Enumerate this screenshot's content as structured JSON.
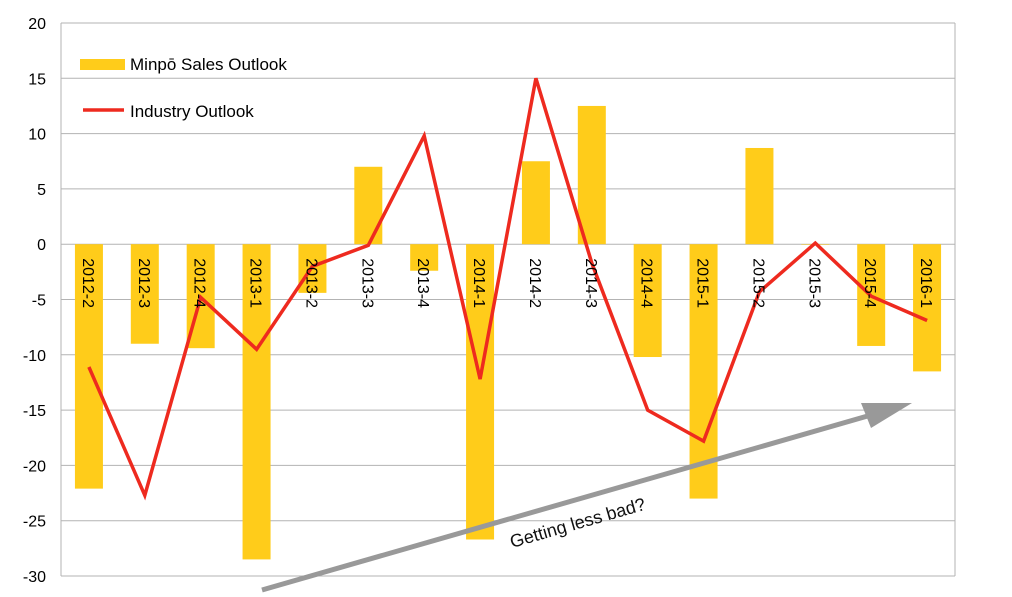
{
  "chart_data": {
    "type": "bar",
    "categories": [
      "2012-2",
      "2012-3",
      "2012-4",
      "2013-1",
      "2013-2",
      "2013-3",
      "2013-4",
      "2014-1",
      "2014-2",
      "2014-3",
      "2014-4",
      "2015-1",
      "2015-2",
      "2015-3",
      "2015-4",
      "2016-1"
    ],
    "series": [
      {
        "name": "Minpō Sales Outlook",
        "type": "bar",
        "color": "#FFCC1A",
        "values": [
          -22.1,
          -9.0,
          -9.4,
          -28.5,
          -4.4,
          7.0,
          -2.4,
          -26.7,
          7.5,
          12.5,
          -10.2,
          -23.0,
          8.7,
          0,
          -9.2,
          -11.5
        ]
      },
      {
        "name": "Industry Outlook",
        "type": "line",
        "color": "#EE2A1F",
        "values": [
          -11.1,
          -22.7,
          -4.8,
          -9.5,
          -2.0,
          -0.1,
          9.8,
          -12.2,
          15.0,
          -1.7,
          -15.0,
          -17.8,
          -4.3,
          0.1,
          -4.7,
          -6.9
        ]
      }
    ],
    "yticks": [
      "20",
      "15",
      "10",
      "5",
      "0",
      "-5",
      "-10",
      "-15",
      "-20",
      "-25",
      "-30"
    ],
    "ylim": [
      -30,
      20
    ],
    "grid": true,
    "legend": {
      "placement": "top-left"
    },
    "annotation": {
      "text": "Getting less bad?",
      "arrow_color": "#999999"
    }
  }
}
